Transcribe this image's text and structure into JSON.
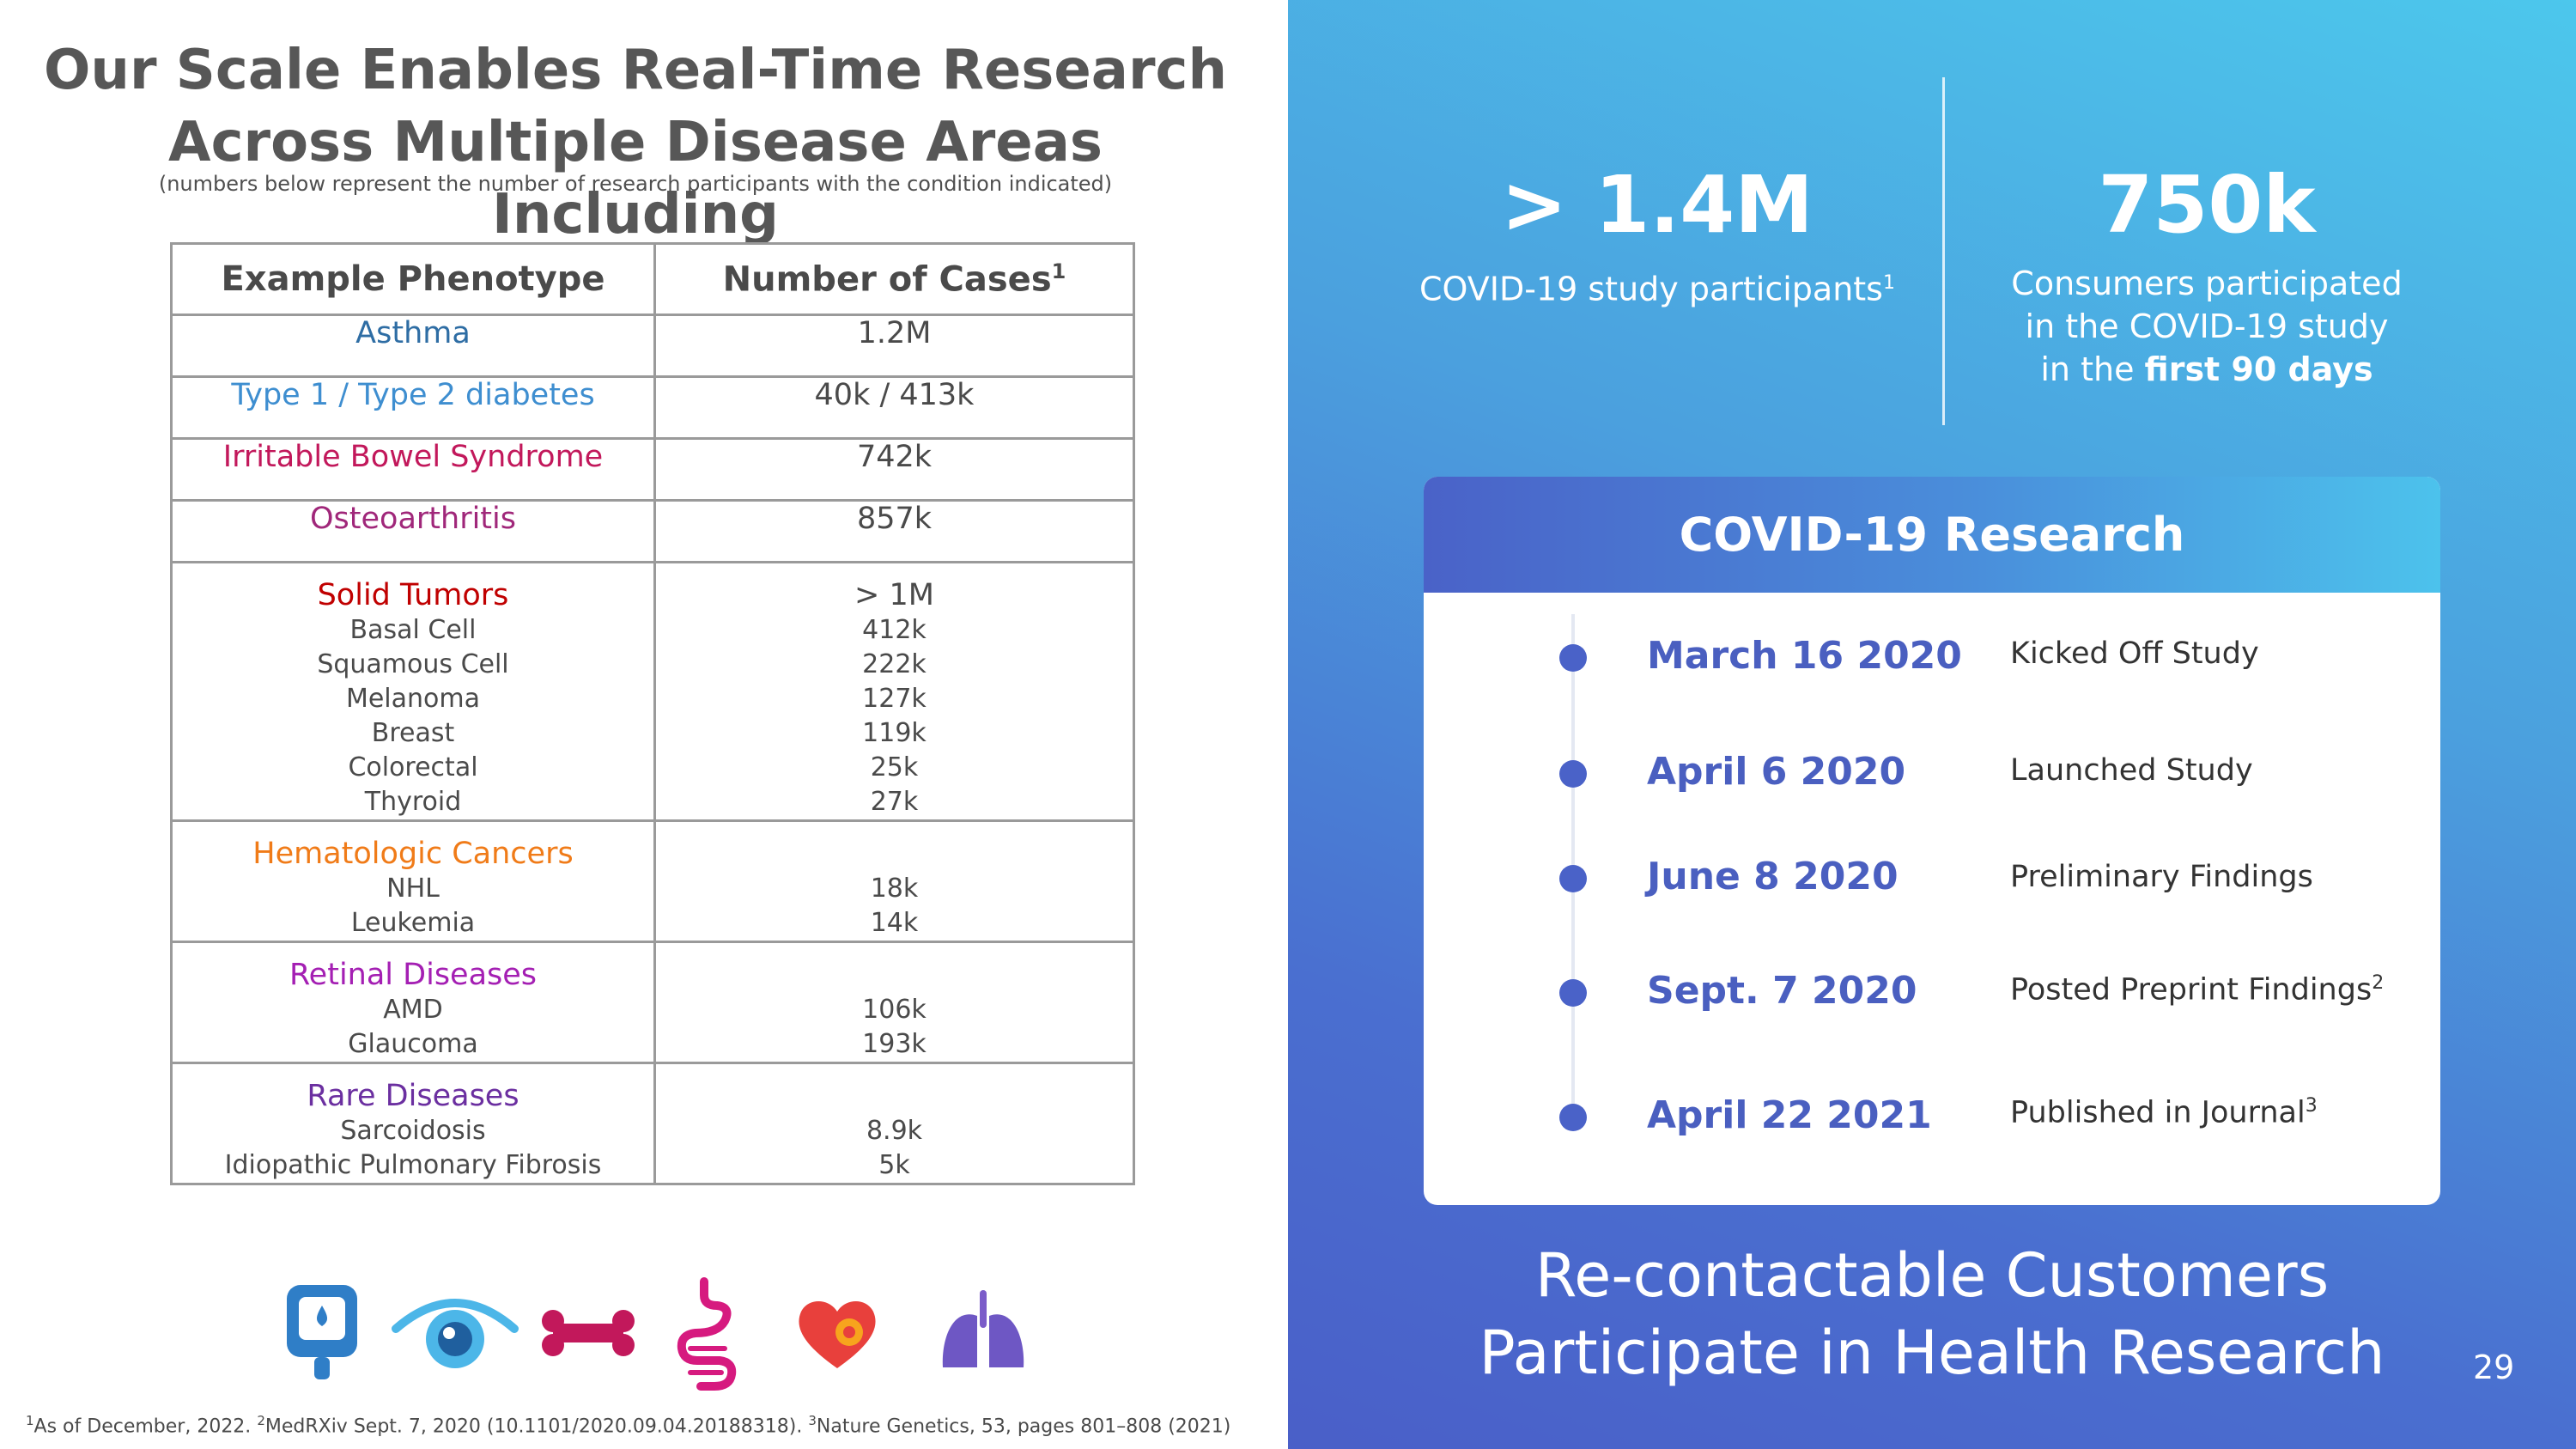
{
  "title_lines": [
    "Our Scale Enables Real-Time Research",
    "Across Multiple Disease Areas Including"
  ],
  "subtitle": "(numbers below represent the number of research participants with the condition indicated)",
  "table": {
    "headers": [
      "Example Phenotype",
      "Number of Cases"
    ],
    "header_sup": "1",
    "single_rows": [
      {
        "label": "Asthma",
        "value": "1.2M",
        "color": "#2e6da4"
      },
      {
        "label": "Type 1 / Type 2 diabetes",
        "value": "40k / 413k",
        "color": "#3e8ed0"
      },
      {
        "label": "Irritable Bowel Syndrome",
        "value": "742k",
        "color": "#c2185b"
      },
      {
        "label": "Osteoarthritis",
        "value": "857k",
        "color": "#a0277a"
      }
    ],
    "groups": [
      {
        "label": "Solid Tumors",
        "value": "> 1M",
        "color": "#c00000",
        "subs": [
          "Basal Cell",
          "Squamous Cell",
          "Melanoma",
          "Breast",
          "Colorectal",
          "Thyroid"
        ],
        "sub_values": [
          "412k",
          "222k",
          "127k",
          "119k",
          "25k",
          "27k"
        ]
      },
      {
        "label": "Hematologic Cancers",
        "value": "",
        "color": "#f07b18",
        "subs": [
          "NHL",
          "Leukemia"
        ],
        "sub_values": [
          "18k",
          "14k"
        ]
      },
      {
        "label": "Retinal Diseases",
        "value": "",
        "color": "#a41fb3",
        "subs": [
          "AMD",
          "Glaucoma"
        ],
        "sub_values": [
          "106k",
          "193k"
        ]
      },
      {
        "label": "Rare Diseases",
        "value": "",
        "color": "#6b2fa0",
        "subs": [
          "Sarcoidosis",
          "Idiopathic Pulmonary Fibrosis"
        ],
        "sub_values": [
          "8.9k",
          "5k"
        ]
      }
    ]
  },
  "icons": [
    "glucose-meter-icon",
    "eye-icon",
    "bone-icon",
    "intestine-icon",
    "heart-icon",
    "lungs-icon"
  ],
  "footnote": {
    "n1": "1",
    "t1": "As of December, 2022.",
    "n2": "2",
    "t2": "MedRXiv Sept. 7, 2020 (10.1101/2020.09.04.20188318).",
    "n3": "3",
    "t3": "Nature Genetics, 53, pages 801–808 (2021)"
  },
  "stats": {
    "left_big": "> 1.4M",
    "left_caption": "COVID-19 study participants",
    "left_sup": "1",
    "right_big": "750k",
    "right_caption_1": "Consumers participated",
    "right_caption_2": "in the COVID-19 study",
    "right_caption_3a": "in the ",
    "right_caption_3b": "first 90 days"
  },
  "covid": {
    "heading": "COVID-19 Research",
    "timeline": [
      {
        "date": "March 16 2020",
        "event": "Kicked Off Study",
        "sup": ""
      },
      {
        "date": "April 6 2020",
        "event": "Launched Study",
        "sup": ""
      },
      {
        "date": "June 8 2020",
        "event": "Preliminary Findings",
        "sup": ""
      },
      {
        "date": "Sept. 7 2020",
        "event": "Posted Preprint Findings",
        "sup": "2"
      },
      {
        "date": "April 22 2021",
        "event": "Published in Journal",
        "sup": "3"
      }
    ]
  },
  "tagline_lines": [
    "Re-contactable Customers",
    "Participate in Health Research"
  ],
  "page_number": "29",
  "colors": {
    "accent_blue": "#4a62c8",
    "light_blue": "#4cc7ec",
    "title_gray": "#575757"
  }
}
